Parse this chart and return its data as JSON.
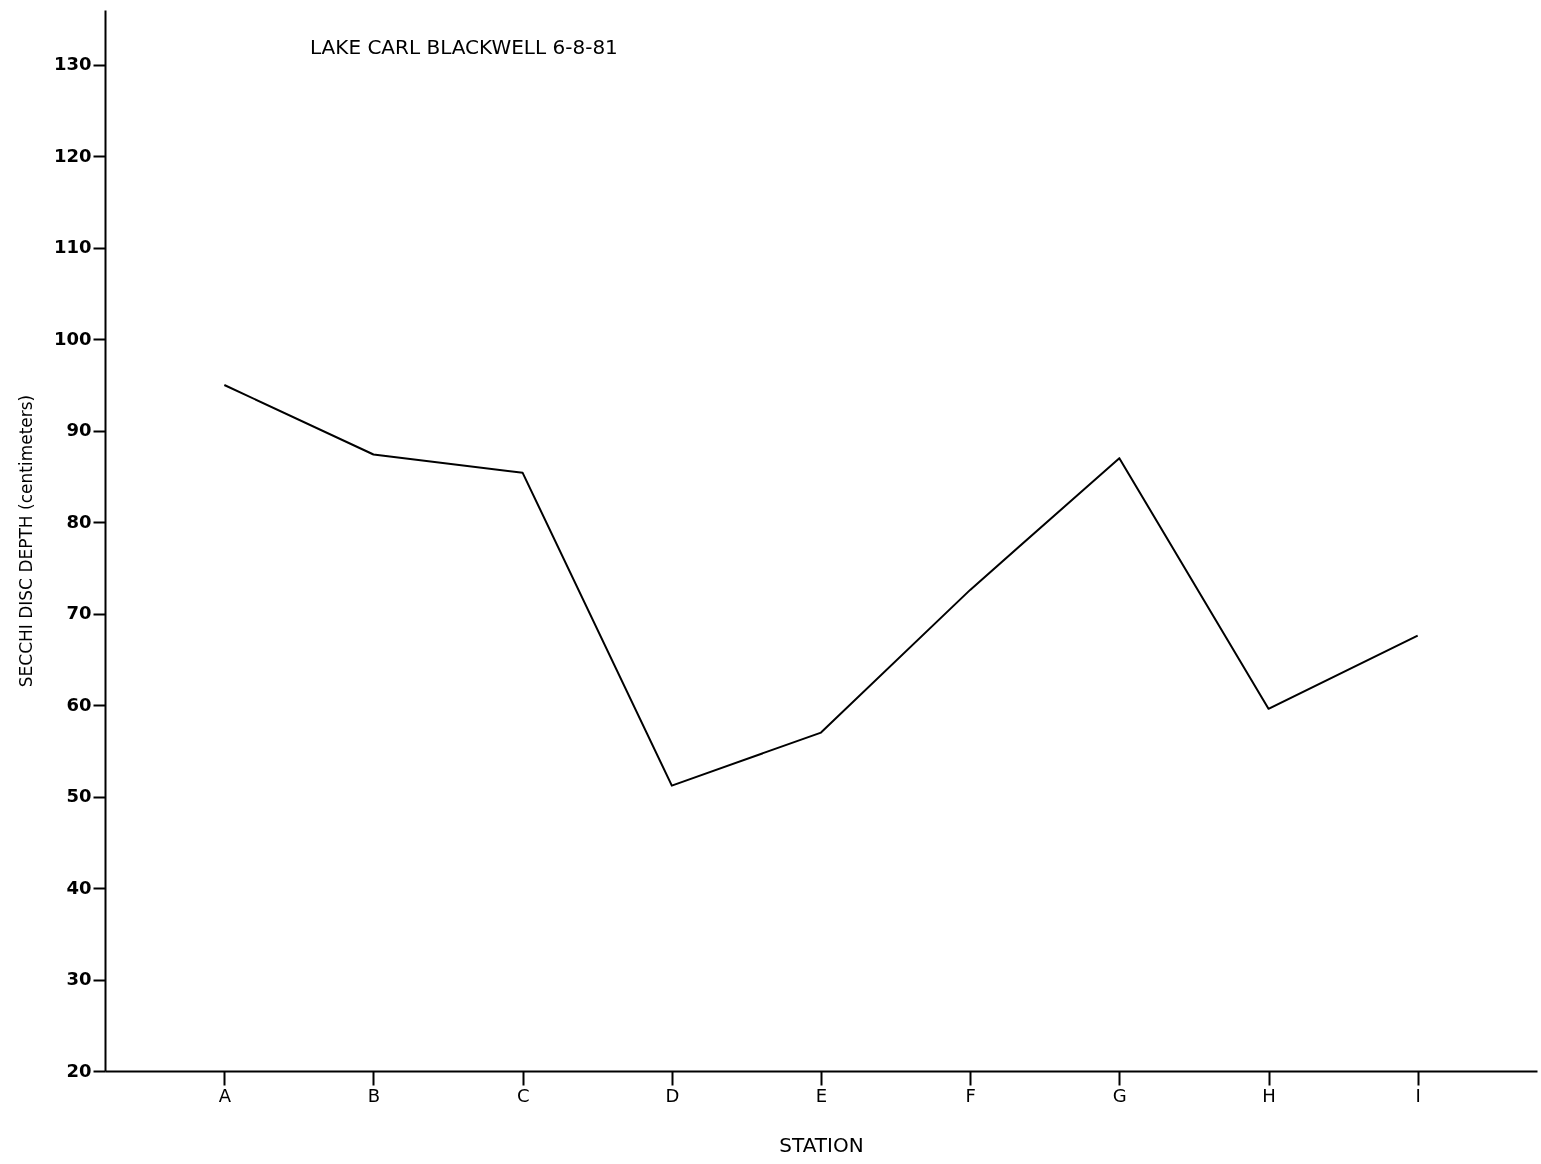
{
  "chart_data": {
    "type": "line",
    "title": "LAKE CARL BLACKWELL      6-8-81",
    "xlabel": "STATION",
    "ylabel": "SECCHI DISC DEPTH (centimeters)",
    "categories": [
      "A",
      "B",
      "C",
      "D",
      "E",
      "F",
      "G",
      "H",
      "I"
    ],
    "series": [
      {
        "color": "#000000",
        "values": [
          95,
          87.4,
          85.4,
          51.2,
          57,
          72.6,
          87,
          59.6,
          67.6
        ]
      }
    ],
    "ylim": [
      20,
      136
    ],
    "yticks": [
      20,
      30,
      40,
      50,
      60,
      70,
      80,
      90,
      100,
      110,
      120,
      130
    ],
    "grid": false,
    "marker": "none",
    "line_style": "solid"
  }
}
